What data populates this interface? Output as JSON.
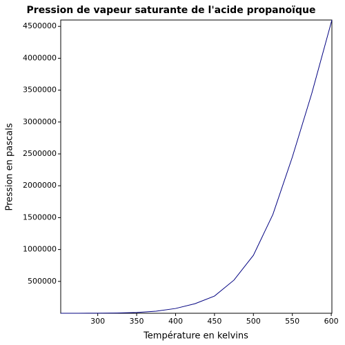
{
  "chart_data": {
    "type": "line",
    "title": "Pression de vapeur saturante de l'acide propanoïque",
    "x_label": "Température en kelvins",
    "y_label": "Pression en pascals",
    "x": [
      252.45,
      275,
      300,
      325,
      350,
      375,
      400,
      425,
      450,
      475,
      500,
      525,
      550,
      575,
      600.81
    ],
    "series": [
      {
        "name": "Pression",
        "color": "#000080",
        "values": [
          51,
          260,
          1170,
          4200,
          12600,
          32600,
          75000,
          150000,
          270000,
          520000,
          910000,
          1550000,
          2450000,
          3450000,
          4600000
        ]
      }
    ],
    "xlim": [
      252.45,
      600.81
    ],
    "ylim": [
      0,
      4600000
    ],
    "xticks": [
      300,
      350,
      400,
      450,
      500,
      550,
      600
    ],
    "yticks": [
      500000,
      1000000,
      1500000,
      2000000,
      2500000,
      3000000,
      3500000,
      4000000,
      4500000
    ],
    "grid": false
  }
}
